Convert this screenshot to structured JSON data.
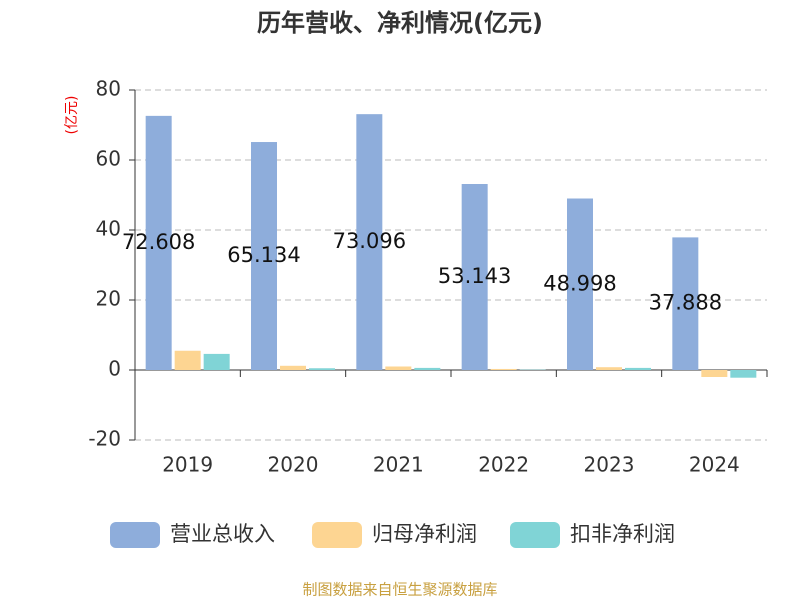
{
  "chart_data": {
    "type": "bar",
    "title": "历年营收、净利情况(亿元)",
    "y_label": "(亿元)",
    "categories": [
      "2019",
      "2020",
      "2021",
      "2022",
      "2023",
      "2024"
    ],
    "series": [
      {
        "name": "营业总收入",
        "color": "#8eaddb",
        "values": [
          72.608,
          65.134,
          73.096,
          53.143,
          48.998,
          37.888
        ],
        "labels": true
      },
      {
        "name": "归母净利润",
        "color": "#fdd592",
        "values": [
          5.5,
          1.2,
          1.0,
          0.3,
          0.8,
          -2.0
        ]
      },
      {
        "name": "扣非净利润",
        "color": "#80d4d6",
        "values": [
          4.6,
          0.5,
          0.6,
          0.1,
          0.6,
          -2.2
        ]
      }
    ],
    "ylim": [
      -20,
      80
    ],
    "yticks": [
      -20,
      0,
      20,
      40,
      60,
      80
    ],
    "grid": true,
    "legend": "bottom",
    "source": "制图数据来自恒生聚源数据库"
  }
}
